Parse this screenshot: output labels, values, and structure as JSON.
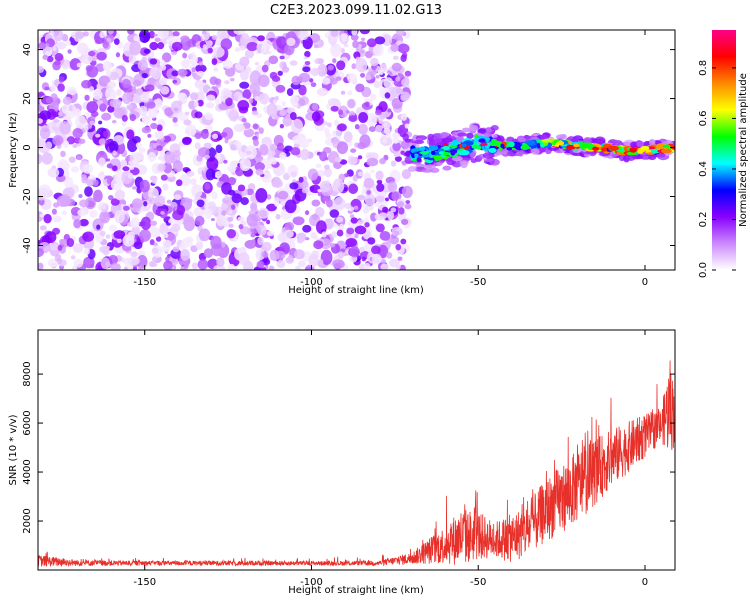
{
  "figure": {
    "title": "C2E3.2023.099.11.02.G13"
  },
  "chart_data": [
    {
      "type": "heatmap",
      "title": "",
      "xlabel": "Height of straight line (km)",
      "ylabel": "Frequency (Hz)",
      "xlim": [
        -182,
        9
      ],
      "ylim": [
        -50,
        48
      ],
      "xticks": [
        -150,
        -100,
        -50,
        0
      ],
      "xtick_labels": [
        "-150",
        "-100",
        "-50",
        "0"
      ],
      "yticks": [
        -40,
        -20,
        0,
        20,
        40
      ],
      "ytick_labels": [
        "-40",
        "-20",
        "0",
        "20",
        "40"
      ],
      "noise_region": {
        "x": [
          -182,
          -71
        ],
        "y": [
          -50,
          48
        ],
        "amplitude": [
          0.02,
          0.25
        ]
      },
      "signal_track": [
        {
          "x": -70,
          "y": -2.5
        },
        {
          "x": -65,
          "y": -3
        },
        {
          "x": -60,
          "y": -1.5
        },
        {
          "x": -55,
          "y": 0
        },
        {
          "x": -50,
          "y": 2
        },
        {
          "x": -45,
          "y": 1
        },
        {
          "x": -40,
          "y": 0.5
        },
        {
          "x": -35,
          "y": 1
        },
        {
          "x": -30,
          "y": 2
        },
        {
          "x": -25,
          "y": 1.5
        },
        {
          "x": -20,
          "y": 0.5
        },
        {
          "x": -15,
          "y": 0
        },
        {
          "x": -10,
          "y": -0.5
        },
        {
          "x": -5,
          "y": -1.5
        },
        {
          "x": 0,
          "y": -1
        },
        {
          "x": 5,
          "y": -0.5
        }
      ],
      "colorbar": {
        "label": "Normalized spectral amplitude",
        "ticks": [
          0.0,
          0.2,
          0.4,
          0.6,
          0.8
        ],
        "tick_labels": [
          "0.0",
          "0.2",
          "0.4",
          "0.6",
          "0.8"
        ],
        "range": [
          0,
          0.95
        ],
        "colors": [
          "#ffffff",
          "#cc88ff",
          "#8800ff",
          "#0000ff",
          "#00ffff",
          "#00ff00",
          "#ffff00",
          "#ff8800",
          "#ff0000",
          "#ff0088"
        ]
      }
    },
    {
      "type": "line",
      "title": "",
      "xlabel": "Height of straight line (km)",
      "ylabel": "SNR (10 * v/v)",
      "xlim": [
        -182,
        9
      ],
      "ylim": [
        0,
        9800
      ],
      "xticks": [
        -150,
        -100,
        -50,
        0
      ],
      "xtick_labels": [
        "-150",
        "-100",
        "-50",
        "0"
      ],
      "yticks": [
        2000,
        4000,
        6000,
        8000
      ],
      "ytick_labels": [
        "2000",
        "4000",
        "6000",
        "8000"
      ],
      "color": "#e8302a",
      "envelope": [
        {
          "x": -182,
          "base": 300,
          "amp": 500
        },
        {
          "x": -170,
          "base": 250,
          "amp": 250
        },
        {
          "x": -150,
          "base": 250,
          "amp": 200
        },
        {
          "x": -120,
          "base": 250,
          "amp": 200
        },
        {
          "x": -100,
          "base": 250,
          "amp": 180
        },
        {
          "x": -80,
          "base": 250,
          "amp": 200
        },
        {
          "x": -70,
          "base": 400,
          "amp": 500
        },
        {
          "x": -60,
          "base": 800,
          "amp": 1600
        },
        {
          "x": -55,
          "base": 1000,
          "amp": 2400
        },
        {
          "x": -50,
          "base": 1100,
          "amp": 2000
        },
        {
          "x": -45,
          "base": 1000,
          "amp": 1500
        },
        {
          "x": -40,
          "base": 1000,
          "amp": 2000
        },
        {
          "x": -35,
          "base": 1300,
          "amp": 2200
        },
        {
          "x": -30,
          "base": 2000,
          "amp": 2600
        },
        {
          "x": -20,
          "base": 3000,
          "amp": 3000
        },
        {
          "x": -10,
          "base": 4200,
          "amp": 2400
        },
        {
          "x": 0,
          "base": 5200,
          "amp": 1800
        },
        {
          "x": 5,
          "base": 5700,
          "amp": 1400
        },
        {
          "x": 7,
          "base": 6000,
          "amp": 3600
        },
        {
          "x": 9,
          "base": 6000,
          "amp": 3000
        }
      ]
    }
  ]
}
